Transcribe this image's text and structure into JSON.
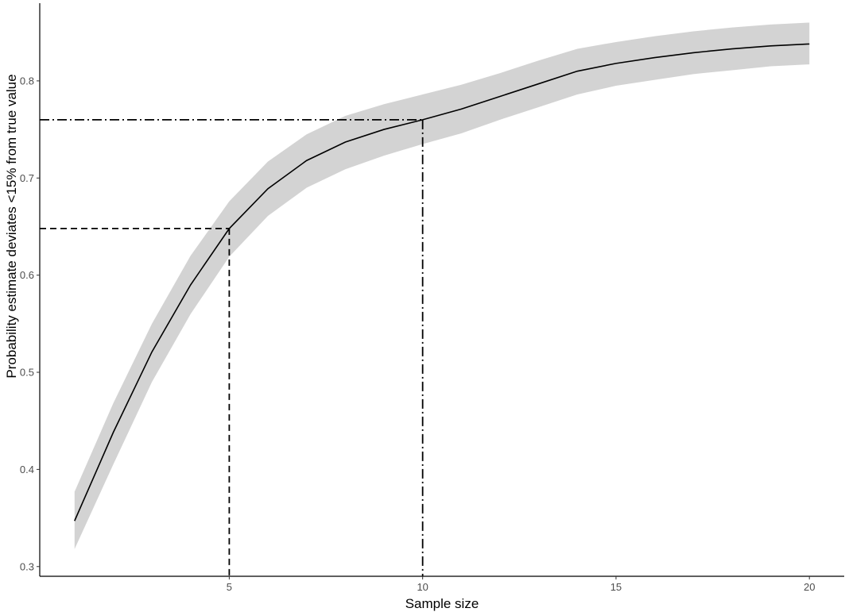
{
  "chart_data": {
    "type": "line",
    "title": "",
    "xlabel": "Sample size",
    "ylabel": "Probability estimate deviates <15% from true value",
    "xlim": [
      0.1,
      20.9
    ],
    "ylim": [
      0.29,
      0.88
    ],
    "x_ticks": [
      5,
      10,
      15,
      20
    ],
    "y_ticks": [
      0.3,
      0.4,
      0.5,
      0.6,
      0.7,
      0.8
    ],
    "x_tick_labels": [
      "5",
      "10",
      "15",
      "20"
    ],
    "y_tick_labels": [
      "0.3",
      "0.4",
      "0.5",
      "0.6",
      "0.7",
      "0.8"
    ],
    "grid": false,
    "series": [
      {
        "x": [
          1,
          2,
          3,
          4,
          5,
          6,
          7,
          8,
          9,
          10,
          11,
          12,
          13,
          14,
          15,
          16,
          17,
          18,
          19,
          20
        ],
        "y": [
          0.347,
          0.438,
          0.521,
          0.59,
          0.648,
          0.689,
          0.718,
          0.737,
          0.75,
          0.76,
          0.771,
          0.784,
          0.797,
          0.81,
          0.818,
          0.824,
          0.829,
          0.833,
          0.836,
          0.838
        ],
        "lower": [
          0.318,
          0.405,
          0.49,
          0.56,
          0.619,
          0.661,
          0.69,
          0.709,
          0.723,
          0.735,
          0.746,
          0.76,
          0.773,
          0.786,
          0.795,
          0.801,
          0.807,
          0.811,
          0.815,
          0.817
        ],
        "upper": [
          0.377,
          0.468,
          0.55,
          0.62,
          0.676,
          0.717,
          0.745,
          0.764,
          0.776,
          0.786,
          0.796,
          0.808,
          0.821,
          0.833,
          0.84,
          0.846,
          0.851,
          0.855,
          0.858,
          0.86
        ],
        "color": "#000000",
        "band_color": "#d3d3d3"
      }
    ],
    "reference_lines": [
      {
        "x": 5,
        "y": 0.648,
        "style": "dashed"
      },
      {
        "x": 10,
        "y": 0.76,
        "style": "dashdot"
      }
    ]
  }
}
